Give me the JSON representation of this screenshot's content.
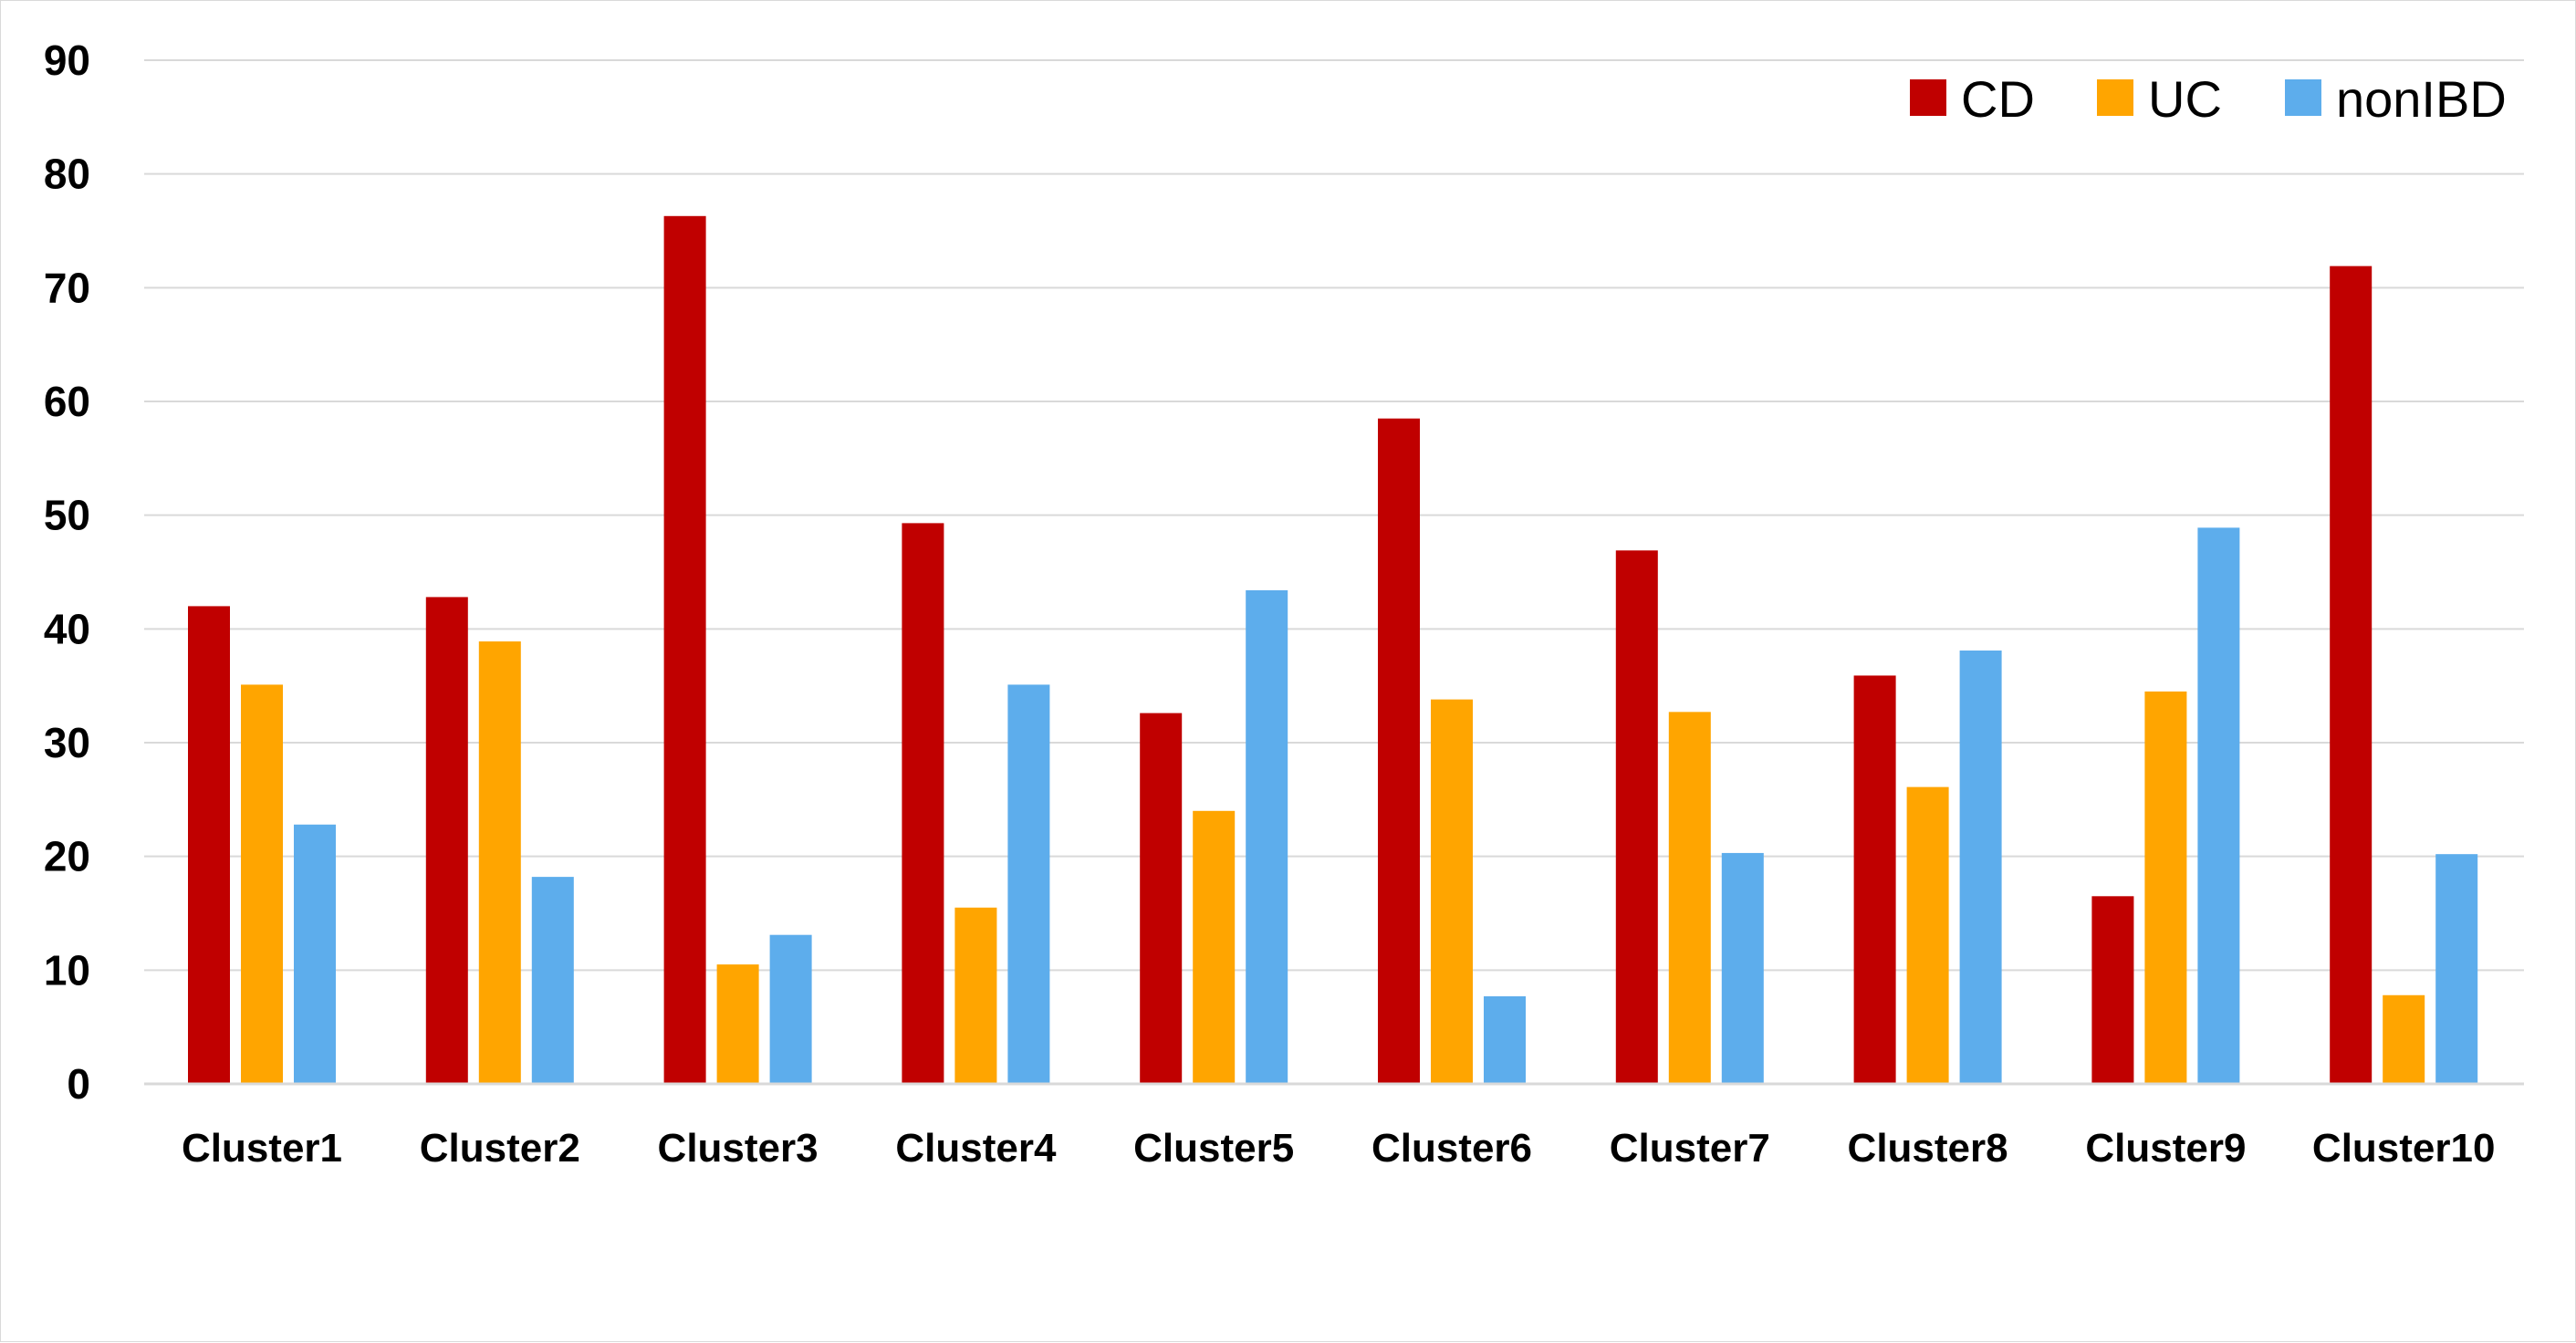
{
  "chart_data": {
    "type": "bar",
    "title": "",
    "xlabel": "",
    "ylabel": "",
    "categories": [
      "Cluster1",
      "Cluster2",
      "Cluster3",
      "Cluster4",
      "Cluster5",
      "Cluster6",
      "Cluster7",
      "Cluster8",
      "Cluster9",
      "Cluster10"
    ],
    "series": [
      {
        "name": "CD",
        "color": "#c00000",
        "values": [
          42,
          42.8,
          76.3,
          49.3,
          32.6,
          58.5,
          46.9,
          35.9,
          16.5,
          71.9
        ]
      },
      {
        "name": "UC",
        "color": "#ffa500",
        "values": [
          35.1,
          38.9,
          10.5,
          15.5,
          24,
          33.8,
          32.7,
          26.1,
          34.5,
          7.8
        ]
      },
      {
        "name": "nonIBD",
        "color": "#5dadec",
        "values": [
          22.8,
          18.2,
          13.1,
          35.1,
          43.4,
          7.7,
          20.3,
          38.1,
          48.9,
          20.2
        ]
      }
    ],
    "ylim": [
      0,
      90
    ],
    "yticks": [
      0,
      10,
      20,
      30,
      40,
      50,
      60,
      70,
      80,
      90
    ],
    "grid": true,
    "legend": "top-right",
    "gridColor": "#d9d9d9"
  }
}
